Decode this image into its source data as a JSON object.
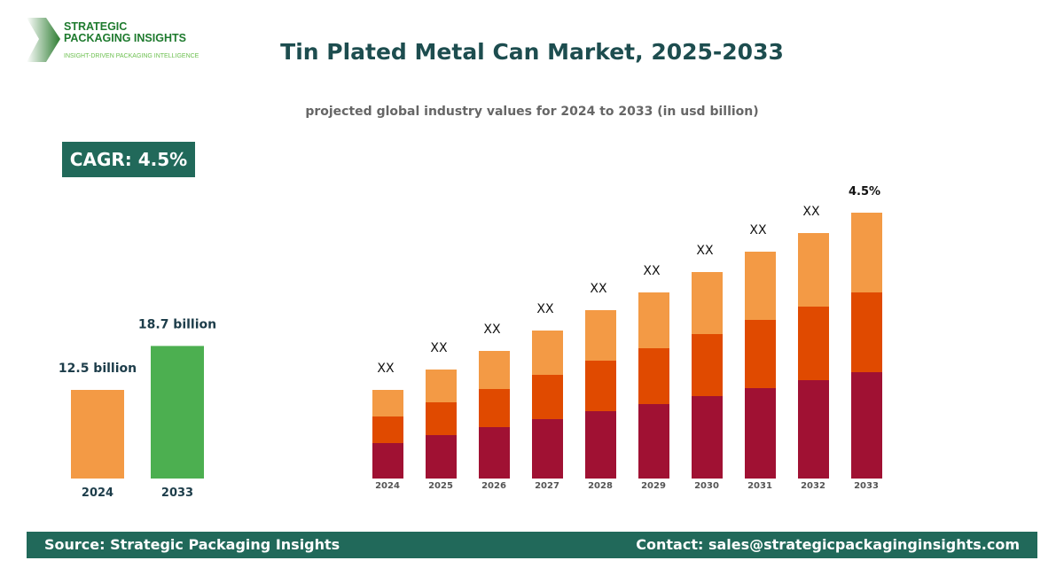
{
  "logo": {
    "brand": "STRATEGIC PACKAGING INSIGHTS",
    "tagline": "INSIGHT-DRIVEN PACKAGING INTELLIGENCE"
  },
  "title": "Tin Plated Metal Can Market, 2025-2033",
  "subtitle": "projected global industry values for 2024 to 2033 (in usd billion)",
  "cagr": "CAGR: 4.5%",
  "footer": {
    "source": "Source: Strategic Packaging Insights",
    "contact": "Contact: sales@strategicpackaginginsights.com"
  },
  "chart_data": [
    {
      "type": "bar",
      "categories": [
        "2024",
        "2033"
      ],
      "values": [
        12.5,
        18.7
      ],
      "data_labels": [
        "12.5 billion",
        "18.7 billion"
      ],
      "colors": [
        "#f39a45",
        "#4caf50"
      ]
    },
    {
      "type": "bar",
      "stacked": true,
      "categories": [
        "2024",
        "2025",
        "2026",
        "2027",
        "2028",
        "2029",
        "2030",
        "2031",
        "2032",
        "2033"
      ],
      "series": [
        {
          "color": "#a01133",
          "values": [
            40,
            49,
            58,
            67,
            76,
            84,
            93,
            102,
            111,
            120
          ]
        },
        {
          "color": "#e04a00",
          "values": [
            30,
            37,
            43,
            50,
            57,
            63,
            70,
            77,
            83,
            90
          ]
        },
        {
          "color": "#f39a45",
          "values": [
            30,
            37,
            43,
            50,
            57,
            63,
            70,
            77,
            83,
            90
          ]
        }
      ],
      "data_labels": [
        "XX",
        "XX",
        "XX",
        "XX",
        "XX",
        "XX",
        "XX",
        "XX",
        "XX",
        "4.5%"
      ]
    }
  ]
}
